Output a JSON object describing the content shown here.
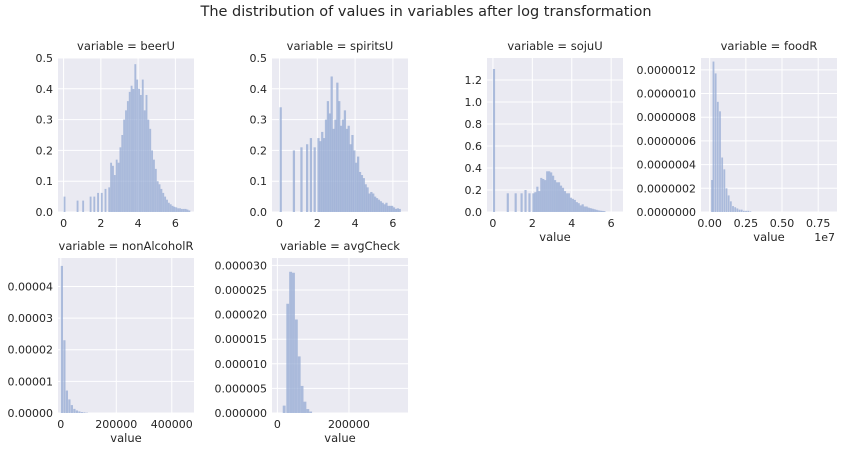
{
  "title": "The distribution of values in variables after log transformation",
  "chart_data": [
    {
      "type": "bar",
      "title": "variable = beerU",
      "xlabel": "",
      "xlim": [
        -0.3,
        7.0
      ],
      "ylim": [
        0,
        0.5
      ],
      "xticks": [
        0,
        2,
        4,
        6
      ],
      "xtick_labels": [
        "0",
        "2",
        "4",
        "6"
      ],
      "yticks": [
        0,
        0.1,
        0.2,
        0.3,
        0.4,
        0.5
      ],
      "ytick_labels": [
        "0.0",
        "0.1",
        "0.2",
        "0.3",
        "0.4",
        "0.5"
      ],
      "bin_width": 0.1,
      "bins": [
        [
          0.0,
          0.05
        ],
        [
          0.7,
          0.037
        ],
        [
          1.0,
          0.037
        ],
        [
          1.4,
          0.05
        ],
        [
          1.6,
          0.05
        ],
        [
          1.8,
          0.062
        ],
        [
          2.0,
          0.062
        ],
        [
          2.2,
          0.075
        ],
        [
          2.4,
          0.08
        ],
        [
          2.5,
          0.16
        ],
        [
          2.6,
          0.15
        ],
        [
          2.7,
          0.12
        ],
        [
          2.8,
          0.17
        ],
        [
          2.9,
          0.16
        ],
        [
          3.0,
          0.21
        ],
        [
          3.1,
          0.25
        ],
        [
          3.2,
          0.3
        ],
        [
          3.3,
          0.33
        ],
        [
          3.4,
          0.36
        ],
        [
          3.5,
          0.39
        ],
        [
          3.6,
          0.41
        ],
        [
          3.7,
          0.4
        ],
        [
          3.8,
          0.48
        ],
        [
          3.9,
          0.43
        ],
        [
          4.0,
          0.4
        ],
        [
          4.1,
          0.38
        ],
        [
          4.2,
          0.43
        ],
        [
          4.3,
          0.33
        ],
        [
          4.4,
          0.38
        ],
        [
          4.5,
          0.3
        ],
        [
          4.6,
          0.27
        ],
        [
          4.7,
          0.2
        ],
        [
          4.8,
          0.17
        ],
        [
          4.9,
          0.14
        ],
        [
          5.0,
          0.1
        ],
        [
          5.1,
          0.09
        ],
        [
          5.2,
          0.075
        ],
        [
          5.3,
          0.062
        ],
        [
          5.4,
          0.05
        ],
        [
          5.5,
          0.04
        ],
        [
          5.6,
          0.03
        ],
        [
          5.7,
          0.025
        ],
        [
          5.8,
          0.02
        ],
        [
          5.9,
          0.017
        ],
        [
          6.0,
          0.015
        ],
        [
          6.1,
          0.012
        ],
        [
          6.2,
          0.012
        ],
        [
          6.3,
          0.01
        ],
        [
          6.4,
          0.01
        ],
        [
          6.5,
          0.01
        ],
        [
          6.6,
          0.008
        ],
        [
          6.7,
          0.005
        ]
      ]
    },
    {
      "type": "bar",
      "title": "variable = spiritsU",
      "xlabel": "",
      "xlim": [
        -0.4,
        6.8
      ],
      "ylim": [
        0,
        0.5
      ],
      "xticks": [
        0,
        2,
        4,
        6
      ],
      "xtick_labels": [
        "0",
        "2",
        "4",
        "6"
      ],
      "yticks": [
        0,
        0.1,
        0.2,
        0.3,
        0.4,
        0.5
      ],
      "ytick_labels": [
        "0.0",
        "0.1",
        "0.2",
        "0.3",
        "0.4",
        "0.5"
      ],
      "bin_width": 0.12,
      "bins": [
        [
          0.0,
          0.34
        ],
        [
          0.7,
          0.2
        ],
        [
          1.1,
          0.21
        ],
        [
          1.4,
          0.22
        ],
        [
          1.6,
          0.24
        ],
        [
          1.8,
          0.21
        ],
        [
          2.0,
          0.24
        ],
        [
          2.1,
          0.23
        ],
        [
          2.2,
          0.26
        ],
        [
          2.3,
          0.24
        ],
        [
          2.4,
          0.3
        ],
        [
          2.5,
          0.36
        ],
        [
          2.6,
          0.32
        ],
        [
          2.7,
          0.44
        ],
        [
          2.8,
          0.27
        ],
        [
          2.9,
          0.3
        ],
        [
          3.0,
          0.42
        ],
        [
          3.1,
          0.36
        ],
        [
          3.2,
          0.28
        ],
        [
          3.3,
          0.3
        ],
        [
          3.4,
          0.33
        ],
        [
          3.5,
          0.27
        ],
        [
          3.6,
          0.28
        ],
        [
          3.7,
          0.22
        ],
        [
          3.8,
          0.25
        ],
        [
          3.9,
          0.2
        ],
        [
          4.0,
          0.16
        ],
        [
          4.1,
          0.18
        ],
        [
          4.2,
          0.13
        ],
        [
          4.3,
          0.12
        ],
        [
          4.4,
          0.11
        ],
        [
          4.5,
          0.09
        ],
        [
          4.6,
          0.08
        ],
        [
          4.7,
          0.06
        ],
        [
          4.8,
          0.065
        ],
        [
          4.9,
          0.06
        ],
        [
          5.0,
          0.05
        ],
        [
          5.1,
          0.045
        ],
        [
          5.2,
          0.04
        ],
        [
          5.3,
          0.035
        ],
        [
          5.4,
          0.03
        ],
        [
          5.5,
          0.025
        ],
        [
          5.6,
          0.03
        ],
        [
          5.7,
          0.02
        ],
        [
          5.8,
          0.02
        ],
        [
          5.9,
          0.02
        ],
        [
          6.0,
          0.015
        ],
        [
          6.1,
          0.01
        ],
        [
          6.2,
          0.012
        ],
        [
          6.3,
          0.01
        ]
      ]
    },
    {
      "type": "bar",
      "title": "variable = sojuU",
      "xlabel": "value",
      "xlim": [
        -0.3,
        6.6
      ],
      "ylim": [
        0,
        1.4
      ],
      "xticks": [
        0,
        2,
        4,
        6
      ],
      "xtick_labels": [
        "0",
        "2",
        "4",
        "6"
      ],
      "yticks": [
        0,
        0.2,
        0.4,
        0.6,
        0.8,
        1.0,
        1.2
      ],
      "ytick_labels": [
        "0.0",
        "0.2",
        "0.4",
        "0.6",
        "0.8",
        "1.0",
        "1.2"
      ],
      "bin_width": 0.11,
      "bins": [
        [
          0.0,
          1.3
        ],
        [
          0.7,
          0.17
        ],
        [
          1.1,
          0.17
        ],
        [
          1.4,
          0.17
        ],
        [
          1.6,
          0.2
        ],
        [
          1.8,
          0.17
        ],
        [
          2.0,
          0.17
        ],
        [
          2.1,
          0.18
        ],
        [
          2.2,
          0.23
        ],
        [
          2.3,
          0.19
        ],
        [
          2.4,
          0.31
        ],
        [
          2.5,
          0.3
        ],
        [
          2.6,
          0.29
        ],
        [
          2.7,
          0.37
        ],
        [
          2.8,
          0.37
        ],
        [
          2.9,
          0.36
        ],
        [
          3.0,
          0.33
        ],
        [
          3.1,
          0.29
        ],
        [
          3.2,
          0.27
        ],
        [
          3.3,
          0.27
        ],
        [
          3.4,
          0.24
        ],
        [
          3.5,
          0.22
        ],
        [
          3.6,
          0.19
        ],
        [
          3.7,
          0.17
        ],
        [
          3.8,
          0.17
        ],
        [
          3.9,
          0.13
        ],
        [
          4.0,
          0.12
        ],
        [
          4.1,
          0.11
        ],
        [
          4.2,
          0.09
        ],
        [
          4.3,
          0.08
        ],
        [
          4.4,
          0.06
        ],
        [
          4.5,
          0.07
        ],
        [
          4.6,
          0.05
        ],
        [
          4.7,
          0.05
        ],
        [
          4.8,
          0.04
        ],
        [
          4.9,
          0.035
        ],
        [
          5.0,
          0.03
        ],
        [
          5.1,
          0.025
        ],
        [
          5.2,
          0.02
        ],
        [
          5.3,
          0.015
        ],
        [
          5.4,
          0.012
        ],
        [
          5.5,
          0.01
        ],
        [
          5.6,
          0.008
        ]
      ]
    },
    {
      "type": "bar",
      "title": "variable = foodR",
      "xlabel": "value",
      "xlim": [
        -0.06,
        0.88
      ],
      "ylim": [
        0,
        1.3e-06
      ],
      "xticks": [
        0,
        0.25,
        0.5,
        0.75
      ],
      "xtick_labels": [
        "0.00",
        "0.25",
        "0.50",
        "0.75"
      ],
      "yticks": [
        0,
        2e-07,
        4e-07,
        6e-07,
        8e-07,
        1e-06,
        1.2e-06
      ],
      "ytick_labels": [
        "0.0000000",
        "0.0000002",
        "0.0000004",
        "0.0000006",
        "0.0000008",
        "0.0000010",
        "0.0000012"
      ],
      "offset_label": "1e7",
      "bin_width": 0.0125,
      "bins": [
        [
          0.01,
          2.7e-07
        ],
        [
          0.02,
          1.27e-06
        ],
        [
          0.035,
          1.17e-06
        ],
        [
          0.05,
          9.3e-07
        ],
        [
          0.065,
          8.5e-07
        ],
        [
          0.08,
          4.6e-07
        ],
        [
          0.095,
          3.6e-07
        ],
        [
          0.11,
          2e-07
        ],
        [
          0.125,
          1.4e-07
        ],
        [
          0.14,
          9e-08
        ],
        [
          0.155,
          5e-08
        ],
        [
          0.17,
          4e-08
        ],
        [
          0.185,
          3e-08
        ],
        [
          0.2,
          2e-08
        ],
        [
          0.215,
          2e-08
        ],
        [
          0.23,
          1e-08
        ],
        [
          0.245,
          1e-08
        ],
        [
          0.26,
          1e-08
        ],
        [
          0.275,
          5e-09
        ]
      ]
    },
    {
      "type": "bar",
      "title": "variable = nonAlcoholR",
      "xlabel": "value",
      "xlim": [
        -10000,
        480000
      ],
      "ylim": [
        0,
        4.9e-05
      ],
      "xticks": [
        0,
        200000,
        400000
      ],
      "xtick_labels": [
        "0",
        "200000",
        "400000"
      ],
      "yticks": [
        0,
        1e-05,
        2e-05,
        3e-05,
        4e-05
      ],
      "ytick_labels": [
        "0.00000",
        "0.00001",
        "0.00002",
        "0.00003",
        "0.00004"
      ],
      "bin_width": 8000,
      "bins": [
        [
          0,
          4.65e-05
        ],
        [
          9000,
          2.3e-05
        ],
        [
          18000,
          7.1e-06
        ],
        [
          27000,
          4.3e-06
        ],
        [
          36000,
          2.5e-06
        ],
        [
          45000,
          1.3e-06
        ],
        [
          54000,
          8e-07
        ],
        [
          63000,
          5e-07
        ],
        [
          72000,
          3e-07
        ],
        [
          81000,
          2e-07
        ],
        [
          90000,
          1e-07
        ]
      ]
    },
    {
      "type": "bar",
      "title": "variable = avgCheck",
      "xlabel": "value",
      "xlim": [
        -15000,
        365000
      ],
      "ylim": [
        0,
        3.15e-05
      ],
      "xticks": [
        0,
        200000
      ],
      "xtick_labels": [
        "0",
        "200000"
      ],
      "yticks": [
        0,
        5e-06,
        1e-05,
        1.5e-05,
        2e-05,
        2.5e-05,
        3e-05
      ],
      "ytick_labels": [
        "0.000000",
        "0.000005",
        "0.000010",
        "0.000015",
        "0.000020",
        "0.000025",
        "0.000030"
      ],
      "bin_width": 8000,
      "bins": [
        [
          15000,
          1.5e-06
        ],
        [
          25000,
          2.22e-05
        ],
        [
          33000,
          2.87e-05
        ],
        [
          41000,
          2.85e-05
        ],
        [
          49000,
          1.9e-05
        ],
        [
          57000,
          1.15e-05
        ],
        [
          65000,
          5.5e-06
        ],
        [
          73000,
          2.3e-06
        ],
        [
          81000,
          8e-07
        ],
        [
          89000,
          3e-07
        ]
      ]
    }
  ]
}
